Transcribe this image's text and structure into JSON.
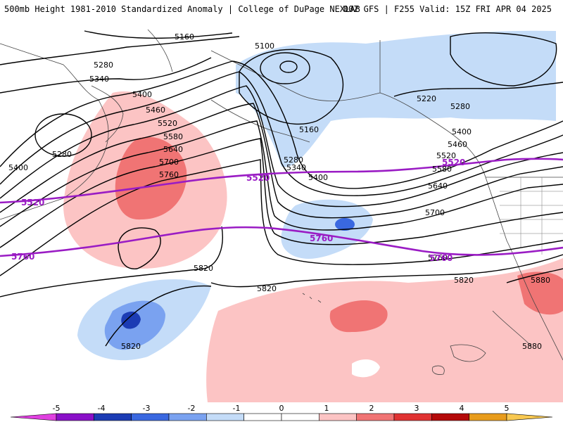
{
  "header": {
    "left": "500mb Height 1981-2010 Standardized Anomaly | College of DuPage NEXLAB",
    "right": "00Z GFS | F255 Valid: 15Z FRI APR 04 2025"
  },
  "height_labels": [
    "5160",
    "5100",
    "5280",
    "5340",
    "5400",
    "5460",
    "5520",
    "5580",
    "5640",
    "5700",
    "5760",
    "5280",
    "5400",
    "5220",
    "5280",
    "5400",
    "5460",
    "5520",
    "5580",
    "5640",
    "5700",
    "5760",
    "5820",
    "5820",
    "5820",
    "5880",
    "5880",
    "5160",
    "5280",
    "5340",
    "5400",
    "5820"
  ],
  "climo_labels": [
    "5520",
    "5520",
    "5520",
    "5760",
    "5760",
    "5760"
  ],
  "colorbar": {
    "ticks": [
      "-5",
      "-4",
      "-3",
      "-2",
      "-1",
      "0",
      "1",
      "2",
      "3",
      "4",
      "5"
    ],
    "colors": [
      "#e040e0",
      "#8a10c8",
      "#1c3cb4",
      "#3a68e0",
      "#7aa2f0",
      "#c4dcf8",
      "#ffffff",
      "#ffffff",
      "#fcc4c4",
      "#f07474",
      "#e03232",
      "#b40a0a",
      "#e89c1c",
      "#f8c850"
    ]
  }
}
